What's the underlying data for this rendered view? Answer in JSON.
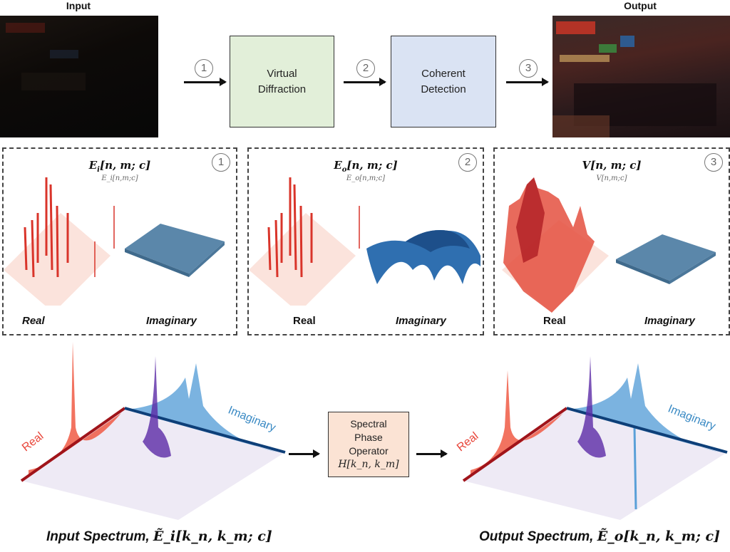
{
  "top": {
    "input_label": "Input",
    "output_label": "Output",
    "steps": [
      {
        "num": "1"
      },
      {
        "num": "2"
      },
      {
        "num": "3"
      }
    ],
    "virtual_diffraction": "Virtual Diffraction",
    "coherent_detection": "Coherent Detection"
  },
  "panels": [
    {
      "num": "1",
      "title": "E_i[n,m;c]",
      "title_main": "E",
      "title_sub": "i",
      "title_rest": "[n, m; c]",
      "real": "Real",
      "imaginary": "Imaginary"
    },
    {
      "num": "2",
      "title": "E_o[n,m;c]",
      "title_main": "E",
      "title_sub": "o",
      "title_rest": "[n, m; c]",
      "real": "Real",
      "imaginary": "Imaginary"
    },
    {
      "num": "3",
      "title": "V[n,m;c]",
      "title_main": "V",
      "title_sub": "",
      "title_rest": "[n, m; c]",
      "real": "Real",
      "imaginary": "Imaginary"
    }
  ],
  "bottom": {
    "operator_lines": [
      "Spectral",
      "Phase",
      "Operator"
    ],
    "operator_math": "H[k_n, k_m]",
    "axis_real": "Real",
    "axis_imag": "Imaginary",
    "input_caption": "Input Spectrum, ",
    "input_caption_math": "Ẽ_i[k_n, k_m; c]",
    "output_caption": "Output Spectrum, ",
    "output_caption_math": "Ẽ_o[k_n, k_m; c]"
  },
  "colors": {
    "diffraction_box": "#e2efd9",
    "detection_box": "#dae3f3",
    "operator_box": "#fbe3d4",
    "real": "#e8463a",
    "imag": "#3a8ac4"
  }
}
